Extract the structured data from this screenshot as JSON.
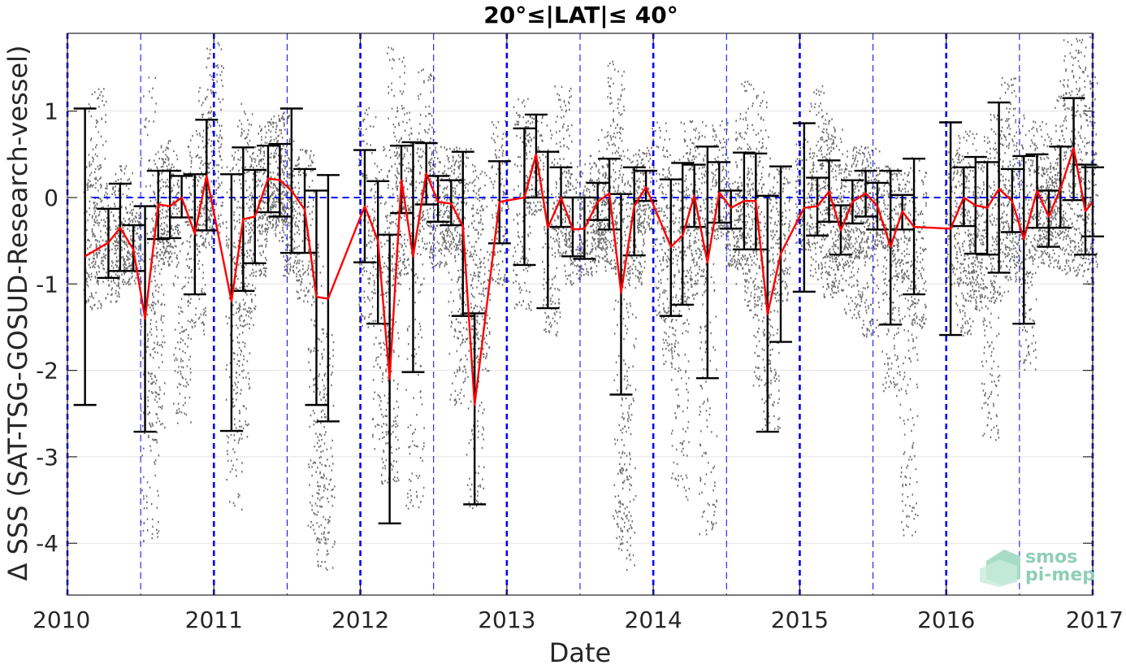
{
  "chart_data": {
    "type": "line",
    "title": "20°≤|LAT|≤ 40°",
    "xlabel": "Date",
    "ylabel": "Δ SSS (SAT-TSG-GOSUD-Research-vessel)",
    "xlim": [
      2010.0,
      2017.0
    ],
    "ylim": [
      -4.6,
      1.9
    ],
    "xticks": [
      2010,
      2011,
      2012,
      2013,
      2014,
      2015,
      2016,
      2017
    ],
    "xtick_labels": [
      "2010",
      "2011",
      "2012",
      "2013",
      "2014",
      "2015",
      "2016",
      "2017"
    ],
    "yticks": [
      -4,
      -3,
      -2,
      -1,
      0,
      1
    ],
    "ytick_labels": [
      "-4",
      "-3",
      "-2",
      "-1",
      "0",
      "1"
    ],
    "grid": true,
    "zero_line": {
      "y": 0,
      "x_range": [
        2010.17,
        2017.0
      ],
      "color": "#0000ff",
      "style": "dashed"
    },
    "year_lines": {
      "x": [
        2010,
        2011,
        2012,
        2013,
        2014,
        2015,
        2016,
        2017
      ],
      "color": "#0000ff",
      "style": "dashed-thick"
    },
    "halfyear_lines": {
      "x": [
        2010.5,
        2011.5,
        2012.5,
        2013.5,
        2014.5,
        2015.5,
        2016.5
      ],
      "color": "#0000ff",
      "style": "dashed-thin"
    },
    "colors": {
      "mean": "#ff0000",
      "errorbar": "#000000",
      "scatter": "#707070",
      "blue": "#0000ff"
    },
    "series": [
      {
        "type": "errorbar-line",
        "points": [
          {
            "x": 2010.12,
            "y": -0.68,
            "lo": -2.4,
            "hi": 1.03
          },
          {
            "x": 2010.28,
            "y": -0.52,
            "lo": -0.93,
            "hi": -0.13
          },
          {
            "x": 2010.36,
            "y": -0.35,
            "lo": -0.85,
            "hi": 0.16
          },
          {
            "x": 2010.45,
            "y": -0.6,
            "lo": -0.85,
            "hi": -0.32
          },
          {
            "x": 2010.53,
            "y": -1.4,
            "lo": -2.71,
            "hi": -0.1
          },
          {
            "x": 2010.62,
            "y": -0.08,
            "lo": -0.48,
            "hi": 0.31
          },
          {
            "x": 2010.7,
            "y": -0.1,
            "lo": -0.47,
            "hi": 0.31
          },
          {
            "x": 2010.78,
            "y": 0.0,
            "lo": -0.23,
            "hi": 0.25
          },
          {
            "x": 2010.87,
            "y": -0.42,
            "lo": -1.12,
            "hi": 0.27
          },
          {
            "x": 2010.95,
            "y": 0.25,
            "lo": -0.38,
            "hi": 0.9
          },
          {
            "x": 2011.12,
            "y": -1.2,
            "lo": -2.7,
            "hi": 0.27
          },
          {
            "x": 2011.2,
            "y": -0.25,
            "lo": -1.08,
            "hi": 0.58
          },
          {
            "x": 2011.28,
            "y": -0.22,
            "lo": -0.76,
            "hi": 0.32
          },
          {
            "x": 2011.37,
            "y": 0.22,
            "lo": -0.17,
            "hi": 0.6
          },
          {
            "x": 2011.45,
            "y": 0.2,
            "lo": -0.22,
            "hi": 0.62
          },
          {
            "x": 2011.53,
            "y": 0.08,
            "lo": -0.64,
            "hi": 1.03
          },
          {
            "x": 2011.62,
            "y": -0.14,
            "lo": -0.64,
            "hi": 0.33
          },
          {
            "x": 2011.7,
            "y": -1.15,
            "lo": -2.4,
            "hi": 0.08
          },
          {
            "x": 2011.78,
            "y": -1.17,
            "lo": -2.59,
            "hi": 0.26
          },
          {
            "x": 2012.03,
            "y": -0.1,
            "lo": -0.75,
            "hi": 0.55
          },
          {
            "x": 2012.12,
            "y": -0.5,
            "lo": -1.46,
            "hi": 0.19
          },
          {
            "x": 2012.2,
            "y": -2.1,
            "lo": -3.77,
            "hi": -0.43
          },
          {
            "x": 2012.28,
            "y": 0.2,
            "lo": -0.18,
            "hi": 0.6
          },
          {
            "x": 2012.36,
            "y": -0.68,
            "lo": -2.02,
            "hi": 0.64
          },
          {
            "x": 2012.45,
            "y": 0.28,
            "lo": -0.08,
            "hi": 0.63
          },
          {
            "x": 2012.53,
            "y": -0.05,
            "lo": -0.28,
            "hi": 0.25
          },
          {
            "x": 2012.62,
            "y": -0.07,
            "lo": -0.32,
            "hi": 0.2
          },
          {
            "x": 2012.7,
            "y": -0.33,
            "lo": -1.37,
            "hi": 0.53
          },
          {
            "x": 2012.78,
            "y": -2.4,
            "lo": -3.55,
            "hi": -1.34
          },
          {
            "x": 2012.95,
            "y": -0.05,
            "lo": -0.53,
            "hi": 0.42
          },
          {
            "x": 2013.12,
            "y": 0.0,
            "lo": -0.78,
            "hi": 0.8
          },
          {
            "x": 2013.2,
            "y": 0.5,
            "lo": 0.0,
            "hi": 0.96
          },
          {
            "x": 2013.28,
            "y": -0.35,
            "lo": -1.28,
            "hi": 0.53
          },
          {
            "x": 2013.37,
            "y": 0.0,
            "lo": -0.34,
            "hi": 0.35
          },
          {
            "x": 2013.45,
            "y": -0.37,
            "lo": -0.68,
            "hi": 0.0
          },
          {
            "x": 2013.53,
            "y": -0.36,
            "lo": -0.71,
            "hi": 0.0
          },
          {
            "x": 2013.62,
            "y": -0.05,
            "lo": -0.26,
            "hi": 0.17
          },
          {
            "x": 2013.7,
            "y": 0.05,
            "lo": -0.37,
            "hi": 0.45
          },
          {
            "x": 2013.78,
            "y": -1.1,
            "lo": -2.28,
            "hi": 0.04
          },
          {
            "x": 2013.87,
            "y": -0.1,
            "lo": -0.67,
            "hi": 0.35
          },
          {
            "x": 2013.95,
            "y": 0.12,
            "lo": -0.04,
            "hi": 0.31
          },
          {
            "x": 2014.12,
            "y": -0.57,
            "lo": -1.37,
            "hi": 0.21
          },
          {
            "x": 2014.2,
            "y": -0.44,
            "lo": -1.24,
            "hi": 0.4
          },
          {
            "x": 2014.28,
            "y": 0.02,
            "lo": -0.34,
            "hi": 0.38
          },
          {
            "x": 2014.37,
            "y": -0.75,
            "lo": -2.09,
            "hi": 0.59
          },
          {
            "x": 2014.45,
            "y": 0.06,
            "lo": -0.29,
            "hi": 0.41
          },
          {
            "x": 2014.53,
            "y": -0.12,
            "lo": -0.36,
            "hi": 0.08
          },
          {
            "x": 2014.62,
            "y": -0.04,
            "lo": -0.6,
            "hi": 0.52
          },
          {
            "x": 2014.7,
            "y": -0.04,
            "lo": -0.6,
            "hi": 0.51
          },
          {
            "x": 2014.78,
            "y": -1.35,
            "lo": -2.71,
            "hi": 0.02
          },
          {
            "x": 2014.87,
            "y": -0.65,
            "lo": -1.67,
            "hi": 0.36
          },
          {
            "x": 2015.03,
            "y": -0.12,
            "lo": -1.09,
            "hi": 0.86
          },
          {
            "x": 2015.12,
            "y": -0.1,
            "lo": -0.44,
            "hi": 0.23
          },
          {
            "x": 2015.2,
            "y": 0.07,
            "lo": -0.28,
            "hi": 0.43
          },
          {
            "x": 2015.28,
            "y": -0.38,
            "lo": -0.66,
            "hi": -0.09
          },
          {
            "x": 2015.36,
            "y": -0.05,
            "lo": -0.3,
            "hi": 0.2
          },
          {
            "x": 2015.45,
            "y": 0.05,
            "lo": -0.22,
            "hi": 0.31
          },
          {
            "x": 2015.53,
            "y": -0.1,
            "lo": -0.37,
            "hi": 0.17
          },
          {
            "x": 2015.62,
            "y": -0.57,
            "lo": -1.47,
            "hi": 0.31
          },
          {
            "x": 2015.7,
            "y": -0.16,
            "lo": -0.37,
            "hi": 0.03
          },
          {
            "x": 2015.78,
            "y": -0.34,
            "lo": -1.12,
            "hi": 0.45
          },
          {
            "x": 2016.03,
            "y": -0.36,
            "lo": -1.59,
            "hi": 0.87
          },
          {
            "x": 2016.12,
            "y": 0.0,
            "lo": -0.33,
            "hi": 0.35
          },
          {
            "x": 2016.2,
            "y": -0.09,
            "lo": -0.65,
            "hi": 0.47
          },
          {
            "x": 2016.28,
            "y": -0.12,
            "lo": -0.66,
            "hi": 0.41
          },
          {
            "x": 2016.36,
            "y": 0.1,
            "lo": -0.87,
            "hi": 1.1
          },
          {
            "x": 2016.45,
            "y": -0.04,
            "lo": -0.4,
            "hi": 0.33
          },
          {
            "x": 2016.53,
            "y": -0.48,
            "lo": -1.46,
            "hi": 0.48
          },
          {
            "x": 2016.62,
            "y": 0.08,
            "lo": -0.35,
            "hi": 0.5
          },
          {
            "x": 2016.7,
            "y": -0.22,
            "lo": -0.57,
            "hi": 0.08
          },
          {
            "x": 2016.78,
            "y": 0.1,
            "lo": -0.35,
            "hi": 0.59
          },
          {
            "x": 2016.87,
            "y": 0.57,
            "lo": -0.03,
            "hi": 1.15
          },
          {
            "x": 2016.95,
            "y": -0.16,
            "lo": -0.66,
            "hi": 0.38
          },
          {
            "x": 2017.0,
            "y": -0.05,
            "lo": -0.45,
            "hi": 0.35
          }
        ]
      }
    ],
    "scatter_clouds": [
      {
        "x": 2010.17,
        "ylo": -1.3,
        "yhi": 0.4
      },
      {
        "x": 2010.2,
        "ylo": -0.8,
        "yhi": 1.3
      },
      {
        "x": 2010.3,
        "ylo": -1.2,
        "yhi": 0.2
      },
      {
        "x": 2010.38,
        "ylo": -1.0,
        "yhi": 0.4
      },
      {
        "x": 2010.44,
        "ylo": -1.0,
        "yhi": -0.1
      },
      {
        "x": 2010.56,
        "ylo": -4.0,
        "yhi": 1.4
      },
      {
        "x": 2010.6,
        "ylo": -2.8,
        "yhi": -0.3
      },
      {
        "x": 2010.64,
        "ylo": -0.7,
        "yhi": 0.7
      },
      {
        "x": 2010.7,
        "ylo": -0.8,
        "yhi": 0.6
      },
      {
        "x": 2010.78,
        "ylo": -2.6,
        "yhi": 0.3
      },
      {
        "x": 2010.88,
        "ylo": -1.6,
        "yhi": 0.8
      },
      {
        "x": 2010.94,
        "ylo": -0.6,
        "yhi": 1.3
      },
      {
        "x": 2011.0,
        "ylo": -0.4,
        "yhi": 1.8
      },
      {
        "x": 2011.14,
        "ylo": -3.6,
        "yhi": 0.4
      },
      {
        "x": 2011.18,
        "ylo": -2.8,
        "yhi": 0.8
      },
      {
        "x": 2011.22,
        "ylo": -1.5,
        "yhi": 1.1
      },
      {
        "x": 2011.3,
        "ylo": -0.9,
        "yhi": 0.6
      },
      {
        "x": 2011.36,
        "ylo": -0.4,
        "yhi": 0.9
      },
      {
        "x": 2011.42,
        "ylo": -0.5,
        "yhi": 1.0
      },
      {
        "x": 2011.48,
        "ylo": -0.3,
        "yhi": 1.0
      },
      {
        "x": 2011.52,
        "ylo": -0.9,
        "yhi": 0.5
      },
      {
        "x": 2011.62,
        "ylo": -1.2,
        "yhi": 0.6
      },
      {
        "x": 2011.7,
        "ylo": -4.0,
        "yhi": -0.5
      },
      {
        "x": 2011.76,
        "ylo": -4.3,
        "yhi": -1.5
      },
      {
        "x": 2012.04,
        "ylo": -1.5,
        "yhi": 1.1
      },
      {
        "x": 2012.14,
        "ylo": -2.9,
        "yhi": 0.6
      },
      {
        "x": 2012.2,
        "ylo": -3.3,
        "yhi": -0.2
      },
      {
        "x": 2012.24,
        "ylo": -1.0,
        "yhi": 1.8
      },
      {
        "x": 2012.3,
        "ylo": -0.9,
        "yhi": 1.0
      },
      {
        "x": 2012.37,
        "ylo": -3.6,
        "yhi": 0.7
      },
      {
        "x": 2012.45,
        "ylo": -0.6,
        "yhi": 1.5
      },
      {
        "x": 2012.53,
        "ylo": -0.8,
        "yhi": 0.6
      },
      {
        "x": 2012.62,
        "ylo": -0.6,
        "yhi": 0.5
      },
      {
        "x": 2012.66,
        "ylo": -2.4,
        "yhi": 0.6
      },
      {
        "x": 2012.72,
        "ylo": -1.7,
        "yhi": 0.6
      },
      {
        "x": 2012.78,
        "ylo": -3.6,
        "yhi": 0.2
      },
      {
        "x": 2012.82,
        "ylo": -2.0,
        "yhi": 0.4
      },
      {
        "x": 2012.95,
        "ylo": -1.0,
        "yhi": 0.9
      },
      {
        "x": 2013.1,
        "ylo": -1.3,
        "yhi": 1.2
      },
      {
        "x": 2013.18,
        "ylo": -0.2,
        "yhi": 1.0
      },
      {
        "x": 2013.3,
        "ylo": -1.6,
        "yhi": 0.9
      },
      {
        "x": 2013.38,
        "ylo": -0.7,
        "yhi": 1.3
      },
      {
        "x": 2013.45,
        "ylo": -1.0,
        "yhi": 0.4
      },
      {
        "x": 2013.55,
        "ylo": -0.9,
        "yhi": 0.5
      },
      {
        "x": 2013.62,
        "ylo": -0.6,
        "yhi": 0.3
      },
      {
        "x": 2013.68,
        "ylo": -0.9,
        "yhi": 0.9
      },
      {
        "x": 2013.74,
        "ylo": -0.6,
        "yhi": 1.6
      },
      {
        "x": 2013.78,
        "ylo": -4.0,
        "yhi": 0.2
      },
      {
        "x": 2013.82,
        "ylo": -4.3,
        "yhi": 0.4
      },
      {
        "x": 2013.88,
        "ylo": -1.0,
        "yhi": 0.6
      },
      {
        "x": 2013.94,
        "ylo": -0.4,
        "yhi": 0.6
      },
      {
        "x": 2014.05,
        "ylo": -1.4,
        "yhi": 0.9
      },
      {
        "x": 2014.12,
        "ylo": -2.0,
        "yhi": 0.6
      },
      {
        "x": 2014.18,
        "ylo": -3.5,
        "yhi": 0.3
      },
      {
        "x": 2014.24,
        "ylo": -1.2,
        "yhi": 0.9
      },
      {
        "x": 2014.3,
        "ylo": -1.0,
        "yhi": 0.9
      },
      {
        "x": 2014.37,
        "ylo": -3.9,
        "yhi": 0.4
      },
      {
        "x": 2014.45,
        "ylo": -0.5,
        "yhi": 0.9
      },
      {
        "x": 2014.55,
        "ylo": -0.8,
        "yhi": 0.2
      },
      {
        "x": 2014.62,
        "ylo": -1.0,
        "yhi": 1.4
      },
      {
        "x": 2014.68,
        "ylo": -1.3,
        "yhi": 0.6
      },
      {
        "x": 2014.74,
        "ylo": -2.2,
        "yhi": 1.3
      },
      {
        "x": 2014.8,
        "ylo": -2.7,
        "yhi": 0.2
      },
      {
        "x": 2014.87,
        "ylo": -1.2,
        "yhi": 0.4
      },
      {
        "x": 2015.03,
        "ylo": -0.6,
        "yhi": 0.7
      },
      {
        "x": 2015.12,
        "ylo": -0.9,
        "yhi": 1.3
      },
      {
        "x": 2015.18,
        "ylo": -1.2,
        "yhi": 1.0
      },
      {
        "x": 2015.24,
        "ylo": -1.1,
        "yhi": 0.8
      },
      {
        "x": 2015.3,
        "ylo": -0.8,
        "yhi": 0.4
      },
      {
        "x": 2015.36,
        "ylo": -1.4,
        "yhi": 0.6
      },
      {
        "x": 2015.42,
        "ylo": -0.7,
        "yhi": 0.6
      },
      {
        "x": 2015.48,
        "ylo": -1.6,
        "yhi": 0.6
      },
      {
        "x": 2015.55,
        "ylo": -0.6,
        "yhi": 0.4
      },
      {
        "x": 2015.62,
        "ylo": -2.3,
        "yhi": 0.4
      },
      {
        "x": 2015.68,
        "ylo": -1.0,
        "yhi": 0.3
      },
      {
        "x": 2015.74,
        "ylo": -3.9,
        "yhi": 0.3
      },
      {
        "x": 2015.8,
        "ylo": -1.5,
        "yhi": 0.5
      },
      {
        "x": 2016.05,
        "ylo": -1.0,
        "yhi": 0.6
      },
      {
        "x": 2016.12,
        "ylo": -1.6,
        "yhi": 0.8
      },
      {
        "x": 2016.18,
        "ylo": -1.2,
        "yhi": 0.4
      },
      {
        "x": 2016.24,
        "ylo": -1.3,
        "yhi": 0.8
      },
      {
        "x": 2016.3,
        "ylo": -2.8,
        "yhi": 0.6
      },
      {
        "x": 2016.36,
        "ylo": -1.2,
        "yhi": 1.0
      },
      {
        "x": 2016.42,
        "ylo": -0.8,
        "yhi": 1.4
      },
      {
        "x": 2016.48,
        "ylo": -1.0,
        "yhi": 1.0
      },
      {
        "x": 2016.55,
        "ylo": -2.0,
        "yhi": 0.5
      },
      {
        "x": 2016.62,
        "ylo": -0.7,
        "yhi": 0.9
      },
      {
        "x": 2016.68,
        "ylo": -0.8,
        "yhi": 0.4
      },
      {
        "x": 2016.74,
        "ylo": -0.5,
        "yhi": 0.8
      },
      {
        "x": 2016.8,
        "ylo": -0.9,
        "yhi": 1.5
      },
      {
        "x": 2016.86,
        "ylo": -0.8,
        "yhi": 1.9
      },
      {
        "x": 2016.92,
        "ylo": -0.9,
        "yhi": 1.9
      },
      {
        "x": 2016.97,
        "ylo": -1.0,
        "yhi": 1.5
      }
    ]
  },
  "watermark": {
    "line1": "smos",
    "line2": "pi-mep",
    "color": "#8fcfb4"
  }
}
